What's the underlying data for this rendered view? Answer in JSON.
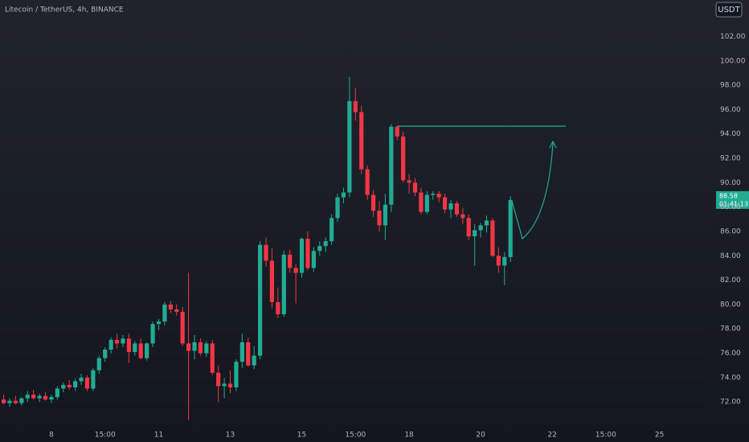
{
  "chart_data": {
    "type": "candlestick",
    "title": "Litecoin / TetherUS, 4h, BINANCE",
    "currency": "USDT",
    "last_price_label": "88.58",
    "countdown": "01:41:13",
    "up_color": "#22ab94",
    "down_color": "#f23645",
    "ylim": [
      69.9,
      105
    ],
    "yticks": [
      {
        "value": 72,
        "label": "72.00"
      },
      {
        "value": 74,
        "label": "74.00"
      },
      {
        "value": 76,
        "label": "76.00"
      },
      {
        "value": 78,
        "label": "78.00"
      },
      {
        "value": 80,
        "label": "80.00"
      },
      {
        "value": 82,
        "label": "82.00"
      },
      {
        "value": 84,
        "label": "84.00"
      },
      {
        "value": 86,
        "label": "86.00"
      },
      {
        "value": 88,
        "label": "88.00"
      },
      {
        "value": 90,
        "label": "90.00"
      },
      {
        "value": 92,
        "label": "92.00"
      },
      {
        "value": 94,
        "label": "94.00"
      },
      {
        "value": 96,
        "label": "96.00"
      },
      {
        "value": 98,
        "label": "98.00"
      },
      {
        "value": 100,
        "label": "100.00"
      },
      {
        "value": 102,
        "label": "102.00"
      }
    ],
    "xlim": [
      -0.62,
      118
    ],
    "xticks": [
      {
        "value": 8,
        "label": "8"
      },
      {
        "value": 17,
        "label": "15:00"
      },
      {
        "value": 26,
        "label": "11"
      },
      {
        "value": 38,
        "label": "13"
      },
      {
        "value": 50,
        "label": "15"
      },
      {
        "value": 59,
        "label": "15:00"
      },
      {
        "value": 68,
        "label": "18"
      },
      {
        "value": 80,
        "label": "20"
      },
      {
        "value": 92,
        "label": "22"
      },
      {
        "value": 101,
        "label": "15:00"
      },
      {
        "value": 110,
        "label": "25"
      }
    ],
    "candles": [
      [
        72.2,
        72.6,
        71.8,
        71.9
      ],
      [
        71.9,
        72.3,
        71.6,
        72.1
      ],
      [
        72.1,
        72.5,
        71.8,
        71.9
      ],
      [
        71.9,
        72.4,
        71.7,
        72.3
      ],
      [
        72.3,
        72.9,
        72.0,
        72.6
      ],
      [
        72.6,
        73.0,
        72.2,
        72.3
      ],
      [
        72.3,
        72.7,
        72.0,
        72.5
      ],
      [
        72.5,
        72.8,
        72.1,
        72.2
      ],
      [
        72.2,
        72.6,
        71.9,
        72.4
      ],
      [
        72.4,
        73.3,
        72.2,
        73.1
      ],
      [
        73.1,
        73.6,
        72.8,
        73.4
      ],
      [
        73.4,
        73.8,
        73.0,
        73.2
      ],
      [
        73.2,
        73.9,
        72.9,
        73.7
      ],
      [
        73.7,
        74.3,
        73.4,
        74.0
      ],
      [
        74.0,
        74.2,
        72.9,
        73.1
      ],
      [
        73.1,
        74.8,
        72.9,
        74.6
      ],
      [
        74.6,
        75.8,
        74.3,
        75.6
      ],
      [
        75.6,
        76.5,
        75.3,
        76.3
      ],
      [
        76.3,
        77.3,
        76.0,
        77.1
      ],
      [
        77.1,
        77.6,
        76.4,
        76.8
      ],
      [
        76.8,
        77.5,
        76.5,
        77.2
      ],
      [
        77.2,
        77.6,
        75.2,
        76.1
      ],
      [
        76.1,
        77.0,
        75.8,
        76.8
      ],
      [
        76.8,
        77.2,
        75.5,
        75.6
      ],
      [
        75.6,
        76.9,
        75.4,
        76.8
      ],
      [
        76.8,
        78.6,
        76.5,
        78.4
      ],
      [
        78.4,
        78.8,
        77.9,
        78.6
      ],
      [
        78.6,
        80.2,
        78.3,
        80.0
      ],
      [
        80.0,
        80.3,
        79.3,
        79.6
      ],
      [
        79.6,
        80.0,
        79.1,
        79.4
      ],
      [
        79.4,
        79.8,
        76.6,
        76.8
      ],
      [
        76.8,
        82.6,
        70.5,
        76.2
      ],
      [
        76.2,
        77.5,
        75.5,
        76.9
      ],
      [
        76.9,
        77.2,
        75.8,
        76.0
      ],
      [
        76.0,
        77.0,
        75.7,
        76.8
      ],
      [
        76.8,
        77.1,
        74.2,
        74.4
      ],
      [
        74.4,
        75.0,
        72.0,
        73.3
      ],
      [
        73.3,
        74.0,
        72.3,
        73.5
      ],
      [
        73.5,
        74.6,
        72.7,
        73.2
      ],
      [
        73.2,
        75.5,
        72.9,
        75.3
      ],
      [
        75.3,
        77.6,
        74.8,
        76.9
      ],
      [
        76.9,
        77.3,
        74.9,
        75.0
      ],
      [
        75.0,
        76.6,
        74.7,
        75.8
      ],
      [
        75.8,
        85.2,
        75.5,
        84.9
      ],
      [
        84.9,
        85.5,
        83.1,
        83.6
      ],
      [
        83.6,
        84.6,
        79.7,
        80.2
      ],
      [
        80.2,
        81.4,
        78.9,
        79.2
      ],
      [
        79.2,
        84.4,
        79.0,
        84.1
      ],
      [
        84.1,
        84.5,
        82.6,
        83.0
      ],
      [
        83.0,
        83.3,
        80.1,
        82.6
      ],
      [
        82.6,
        85.5,
        82.2,
        85.4
      ],
      [
        85.4,
        86.0,
        82.8,
        83.0
      ],
      [
        83.0,
        84.7,
        82.7,
        84.4
      ],
      [
        84.4,
        85.2,
        84.0,
        84.8
      ],
      [
        84.8,
        85.5,
        84.3,
        85.2
      ],
      [
        85.2,
        87.4,
        84.9,
        87.1
      ],
      [
        87.1,
        89.1,
        86.8,
        88.8
      ],
      [
        88.8,
        89.6,
        88.3,
        89.2
      ],
      [
        89.2,
        98.7,
        88.8,
        96.7
      ],
      [
        96.7,
        97.8,
        95.1,
        95.8
      ],
      [
        95.8,
        96.3,
        90.7,
        91.1
      ],
      [
        91.1,
        91.4,
        88.6,
        89.0
      ],
      [
        89.0,
        89.4,
        87.2,
        87.7
      ],
      [
        87.7,
        88.5,
        86.0,
        86.5
      ],
      [
        86.5,
        89.1,
        85.3,
        88.2
      ],
      [
        88.2,
        94.8,
        87.6,
        94.6
      ],
      [
        94.6,
        94.7,
        93.5,
        93.8
      ],
      [
        93.8,
        94.2,
        90.0,
        90.2
      ],
      [
        90.2,
        90.7,
        89.1,
        90.0
      ],
      [
        90.0,
        90.4,
        88.9,
        89.2
      ],
      [
        89.2,
        89.6,
        87.4,
        87.6
      ],
      [
        87.6,
        89.3,
        87.4,
        89.0
      ],
      [
        89.0,
        89.3,
        88.6,
        89.1
      ],
      [
        89.1,
        89.3,
        88.4,
        88.8
      ],
      [
        88.8,
        89.1,
        87.5,
        87.8
      ],
      [
        87.8,
        88.6,
        87.1,
        88.3
      ],
      [
        88.3,
        88.5,
        87.2,
        87.4
      ],
      [
        87.4,
        87.9,
        86.6,
        87.1
      ],
      [
        87.1,
        87.4,
        85.3,
        85.6
      ],
      [
        85.6,
        86.6,
        83.2,
        86.1
      ],
      [
        86.1,
        86.7,
        85.5,
        86.5
      ],
      [
        86.5,
        87.3,
        85.9,
        86.9
      ],
      [
        86.9,
        87.1,
        83.9,
        84.0
      ],
      [
        84.0,
        84.7,
        82.6,
        83.2
      ],
      [
        83.2,
        84.3,
        81.6,
        83.9
      ],
      [
        83.9,
        88.9,
        83.5,
        88.58
      ]
    ]
  }
}
